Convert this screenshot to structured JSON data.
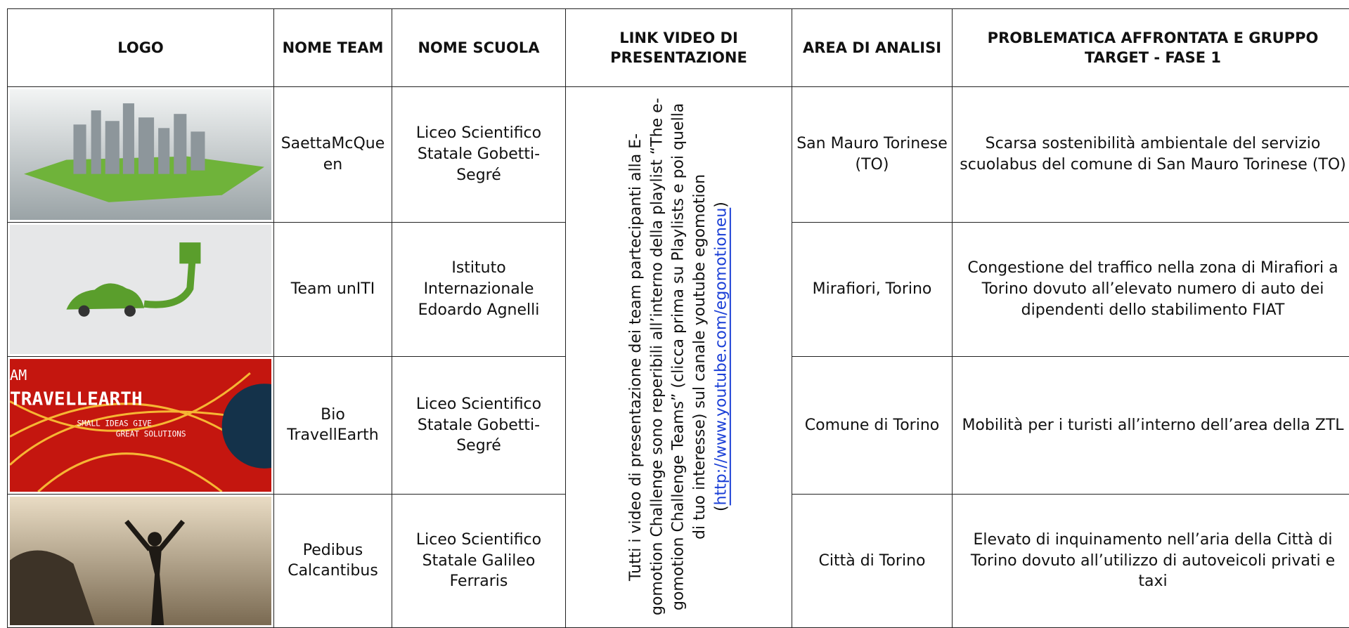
{
  "table": {
    "header": [
      "LOGO",
      "NOME TEAM",
      "NOME SCUOLA",
      "LINK VIDEO DI PRESENTAZIONE",
      "AREA DI ANALISI",
      "PROBLEMATICA AFFRONTATA E GRUPPO TARGET - FASE 1"
    ],
    "video_note": {
      "text": "Tutti i video di presentazione dei team partecipanti alla E-gomotion Challenge sono reperibili all’interno della playlist “The e-gomotion Challenge Teams” (clicca prima su Playlists e poi quella di tuo interesse) sul canale youtube egomotion",
      "open": "(",
      "link": "http://www.youtube.com/egomotioneu",
      "close": ")"
    },
    "rows": [
      {
        "name": "SaettaMcQueen",
        "school": "Liceo Scientifico Statale Gobetti-Segré",
        "area": "San Mauro Torinese (TO)",
        "problem": "Scarsa sostenibilità ambientale del servizio scuolabus del comune di San Mauro Torinese (TO)"
      },
      {
        "name": "Team unITI",
        "school": "Istituto Internazionale Edoardo Agnelli",
        "area": "Mirafiori, Torino",
        "problem": "Congestione del traffico nella zona di Mirafiori a Torino dovuto all’elevato numero di auto dei dipendenti dello stabilimento FIAT"
      },
      {
        "name": "Bio TravellEarth",
        "school": "Liceo Scientifico Statale Gobetti-Segré",
        "area": "Comune di Torino",
        "problem": "Mobilità per i turisti all’interno dell’area della ZTL"
      },
      {
        "name": "Pedibus Calcantibus",
        "school": "Liceo Scientifico Statale Galileo Ferraris",
        "area": "Città di Torino",
        "problem": "Elevato di inquinamento nell’aria della Città di Torino dovuto all’utilizzo di autoveicoli privati e taxi"
      }
    ],
    "logo_texts": [
      "AM",
      "TRAVELLEARTH",
      "SMALL IDEAS GIVE",
      "GREAT SOLUTIONS"
    ]
  }
}
